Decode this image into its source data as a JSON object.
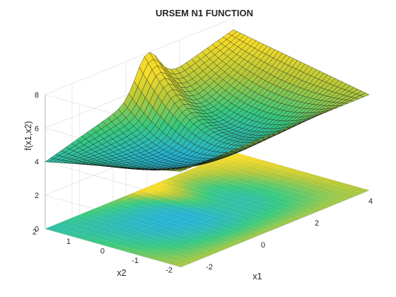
{
  "chart_data": {
    "type": "surface",
    "title": "URSEM N1 FUNCTION",
    "xlabel": "x1",
    "ylabel": "x2",
    "zlabel": "f(x1,x2)",
    "xlim": [
      -3,
      4
    ],
    "ylim": [
      -2,
      2
    ],
    "zlim": [
      0,
      8
    ],
    "xticks": [
      -2,
      0,
      2,
      4
    ],
    "yticks": [
      -2,
      -1,
      0,
      1,
      2
    ],
    "zticks": [
      0,
      2,
      4,
      6,
      8
    ],
    "grid": true,
    "floor_contour": true,
    "surface_corner_values": [
      {
        "x1": -3,
        "x2": -2,
        "f": 5.7
      },
      {
        "x1": 3,
        "x2": -2,
        "f": 5.7
      },
      {
        "x1": 3,
        "x2": 2,
        "f": 7.3
      },
      {
        "x1": -3,
        "x2": 2,
        "f": 4.0
      }
    ],
    "ridge_peak": {
      "x1": 0.8,
      "x2": 2,
      "f": 6.7
    },
    "colormap": [
      "#3e26a8",
      "#2f7dfd",
      "#23b0dd",
      "#38c97e",
      "#b3c73a",
      "#f4db29"
    ]
  }
}
